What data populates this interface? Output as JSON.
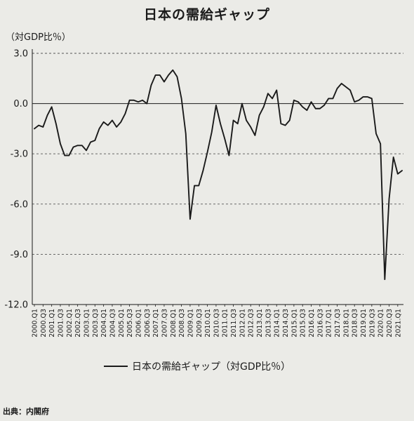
{
  "chart_data": {
    "type": "line",
    "title": "日本の需給ギャップ",
    "unit_label": "（対GDP比％）",
    "ylim": [
      -12.0,
      3.0
    ],
    "yticks": [
      "3.0",
      "0.0",
      "-3.0",
      "-6.0",
      "-9.0",
      "-12.0"
    ],
    "ytick_values": [
      3,
      0,
      -3,
      -6,
      -9,
      -12
    ],
    "grid": "horizontal-dashed",
    "zero_line": true,
    "x_tick_labels": [
      "2000.Q1",
      "2000.Q3",
      "2001.Q1",
      "2001.Q3",
      "2002.Q1",
      "2002.Q3",
      "2003.Q1",
      "2003.Q3",
      "2004.Q1",
      "2004.Q3",
      "2005.Q1",
      "2005.Q3",
      "2006.Q1",
      "2006.Q3",
      "2007.Q1",
      "2007.Q3",
      "2008.Q1",
      "2008.Q3",
      "2009.Q1",
      "2009.Q3",
      "2010.Q1",
      "2010.Q3",
      "2011.Q1",
      "2011.Q3",
      "2012.Q1",
      "2012.Q3",
      "2013.Q1",
      "2013.Q3",
      "2014.Q1",
      "2014.Q3",
      "2015.Q1",
      "2015.Q3",
      "2016.Q1",
      "2016.Q3",
      "2017.Q1",
      "2017.Q3",
      "2018.Q1",
      "2018.Q3",
      "2019.Q1",
      "2019.Q3",
      "2020.Q1",
      "2020.Q3",
      "2021.Q1"
    ],
    "series": [
      {
        "name": "日本の需給ギャップ（対GDP比％）",
        "color": "#1a1a1a",
        "values": [
          -1.5,
          -1.3,
          -1.4,
          -0.7,
          -0.2,
          -1.2,
          -2.4,
          -3.1,
          -3.1,
          -2.6,
          -2.5,
          -2.5,
          -2.8,
          -2.3,
          -2.2,
          -1.5,
          -1.1,
          -1.3,
          -1.0,
          -1.4,
          -1.1,
          -0.6,
          0.2,
          0.2,
          0.1,
          0.2,
          0.0,
          1.1,
          1.7,
          1.7,
          1.3,
          1.7,
          2.0,
          1.6,
          0.3,
          -1.8,
          -6.9,
          -4.9,
          -4.9,
          -4.0,
          -2.9,
          -1.7,
          -0.1,
          -1.2,
          -2.1,
          -3.1,
          -1.0,
          -1.2,
          0.0,
          -1.0,
          -1.4,
          -1.9,
          -0.7,
          -0.2,
          0.6,
          0.3,
          0.8,
          -1.2,
          -1.3,
          -1.0,
          0.2,
          0.1,
          -0.2,
          -0.4,
          0.1,
          -0.3,
          -0.3,
          -0.1,
          0.3,
          0.3,
          0.9,
          1.2,
          1.0,
          0.8,
          0.1,
          0.2,
          0.4,
          0.4,
          0.3,
          -1.8,
          -2.4,
          -10.5,
          -5.7,
          -3.2,
          -4.2,
          -4.0
        ]
      }
    ]
  },
  "legend": {
    "label": "日本の需給ギャップ（対GDP比％）"
  },
  "source": "出典：内閣府"
}
